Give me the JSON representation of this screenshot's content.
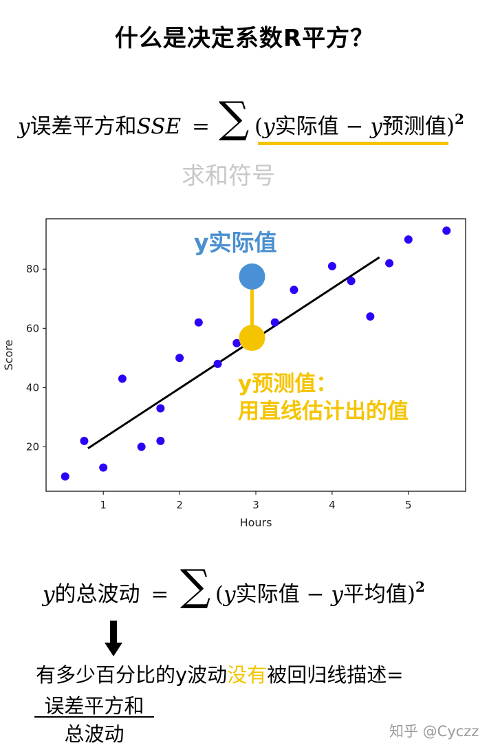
{
  "title": "什么是决定系数R平方？",
  "sse_formula": {
    "lhs_var": "y",
    "lhs_text": "误差平方和",
    "lhs_abbr": "SSE",
    "equals": "=",
    "open_paren": "(",
    "actual_var": "y",
    "actual_text": "实际值",
    "minus": "−",
    "pred_var": "y",
    "pred_text": "预测值",
    "close_paren": ")",
    "power": "2"
  },
  "sum_symbol_label": "求和符号",
  "chart_data": {
    "type": "scatter",
    "xlabel": "Hours",
    "ylabel": "Score",
    "xlim": [
      0.25,
      5.75
    ],
    "ylim": [
      5,
      97
    ],
    "x_ticks": [
      1,
      2,
      3,
      4,
      5
    ],
    "y_ticks": [
      20,
      40,
      60,
      80
    ],
    "grid": false,
    "points": [
      {
        "x": 0.5,
        "y": 10
      },
      {
        "x": 0.75,
        "y": 22
      },
      {
        "x": 1.0,
        "y": 13
      },
      {
        "x": 1.25,
        "y": 43
      },
      {
        "x": 1.5,
        "y": 20
      },
      {
        "x": 1.75,
        "y": 22
      },
      {
        "x": 1.75,
        "y": 33
      },
      {
        "x": 2.0,
        "y": 50
      },
      {
        "x": 2.25,
        "y": 62
      },
      {
        "x": 2.5,
        "y": 48
      },
      {
        "x": 2.75,
        "y": 55
      },
      {
        "x": 3.25,
        "y": 62
      },
      {
        "x": 3.5,
        "y": 73
      },
      {
        "x": 4.0,
        "y": 81
      },
      {
        "x": 4.25,
        "y": 76
      },
      {
        "x": 4.5,
        "y": 64
      },
      {
        "x": 4.75,
        "y": 82
      },
      {
        "x": 5.0,
        "y": 90
      },
      {
        "x": 5.5,
        "y": 93
      }
    ],
    "regression_line": {
      "x_start": 0.8,
      "y_start": 19.5,
      "x_end": 4.62,
      "y_end": 84
    },
    "highlight": {
      "x": 2.95,
      "actual_y": 77.5,
      "predicted_y": 56.8
    },
    "colors": {
      "points": "#2d00f7",
      "line": "#000000",
      "actual": "#4a90d6",
      "predicted": "#f5c400",
      "connector": "#f5c400"
    }
  },
  "annotations": {
    "actual": "y实际值",
    "pred_line1": "y预测值：",
    "pred_line2": "用直线估计出的值"
  },
  "total_formula": {
    "lhs_var": "y",
    "lhs_text": "的总波动",
    "equals": "=",
    "open_paren": "(",
    "actual_var": "y",
    "actual_text": "实际值",
    "minus": "−",
    "mean_var": "y",
    "mean_text": "平均值",
    "close_paren": ")",
    "power": "2"
  },
  "description": {
    "part1": "有多少百分比的y波动",
    "highlight": "没有",
    "part2": "被回归线描述=",
    "numerator": "误差平方和",
    "denominator": "总波动"
  },
  "watermark": "知乎 @Cyczz"
}
